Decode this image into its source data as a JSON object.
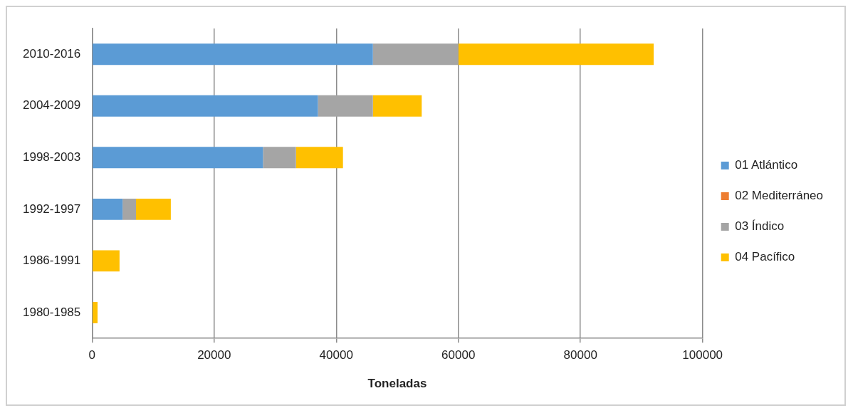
{
  "chart_data": {
    "type": "bar",
    "orientation": "horizontal",
    "stacked": true,
    "xlabel": "Toneladas",
    "categories": [
      "2010-2016",
      "2004-2009",
      "1998-2003",
      "1992-1997",
      "1986-1991",
      "1980-1985"
    ],
    "series": [
      {
        "name": "01 Atlántico",
        "color": "#5b9bd5",
        "values": [
          46000,
          37000,
          28000,
          5000,
          0,
          0
        ]
      },
      {
        "name": "02 Mediterráneo",
        "color": "#ed7d31",
        "values": [
          0,
          0,
          0,
          0,
          0,
          0
        ]
      },
      {
        "name": "03 Índico",
        "color": "#a5a5a5",
        "values": [
          14000,
          9000,
          5400,
          2200,
          0,
          0
        ]
      },
      {
        "name": "04 Pacífico",
        "color": "#ffc000",
        "values": [
          32000,
          8000,
          7700,
          5700,
          4500,
          900
        ]
      }
    ],
    "xlim": [
      0,
      100000
    ],
    "xticks": [
      0,
      20000,
      40000,
      60000,
      80000,
      100000
    ],
    "grid": "x",
    "legend": "right"
  }
}
